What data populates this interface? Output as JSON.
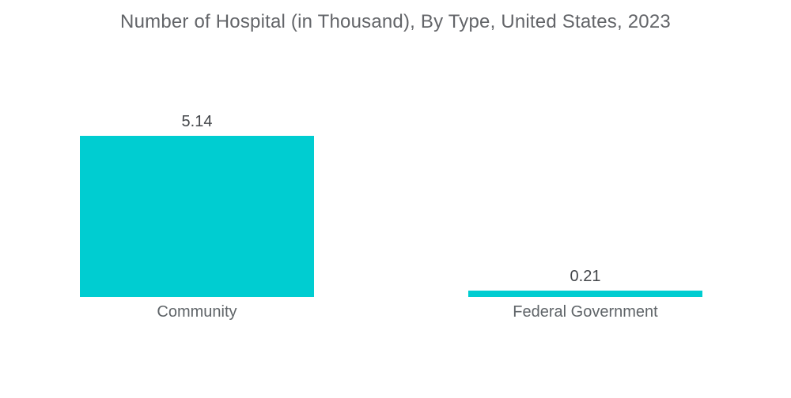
{
  "title": "Number of Hospital (in Thousand), By Type, United States, 2023",
  "chart_data": {
    "type": "bar",
    "orientation": "vertical",
    "title": "Number of Hospital (in Thousand), By Type, United States, 2023",
    "categories": [
      "Community",
      "Federal Government"
    ],
    "values": [
      5.14,
      0.21
    ],
    "value_labels": [
      "5.14",
      "0.21"
    ],
    "xlabel": "",
    "ylabel": "",
    "ylim": [
      0,
      5.14
    ],
    "grid": false,
    "legend": "none",
    "axes_visible": false,
    "data_labels_position": "above-bar"
  },
  "colors": {
    "bar": "#00CDD1",
    "background": "#FFFFFF",
    "title_text": "#636569",
    "value_text": "#43464A",
    "category_text": "#5F6468"
  }
}
